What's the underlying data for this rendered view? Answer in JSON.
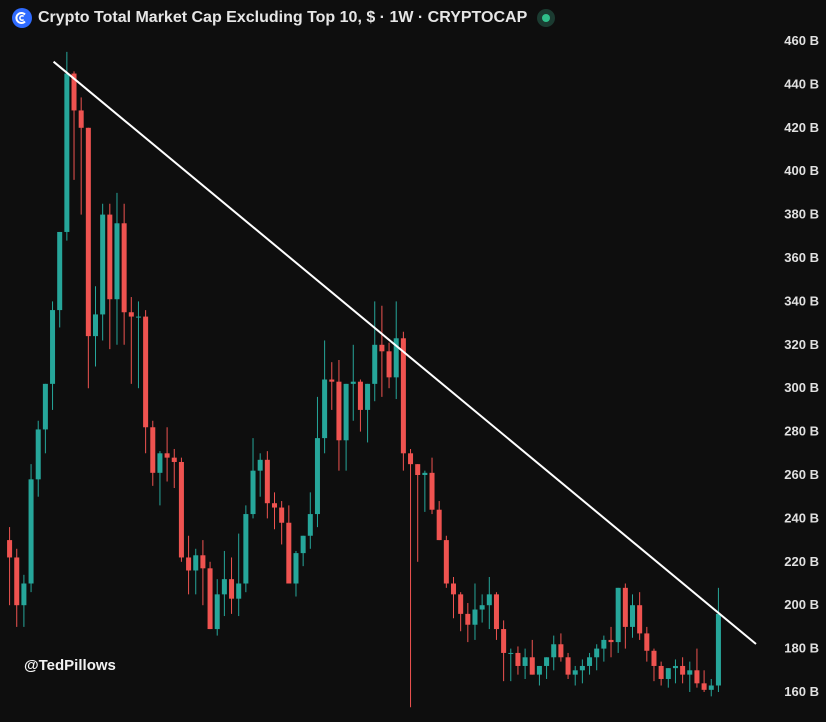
{
  "header": {
    "title": "Crypto Total Market Cap Excluding Top 10, $ · 1W · CRYPTOCAP",
    "logo_icon": "cryptocap-logo-icon",
    "status_icon": "market-status-dot-icon",
    "status_color": "#2fbf8a"
  },
  "watermark": "@TedPillows",
  "chart_data": {
    "type": "candlestick",
    "title": "Crypto Total Market Cap Excluding Top 10, $ · 1W · CRYPTOCAP",
    "xlabel": "",
    "ylabel": "",
    "unit": "B",
    "ylim": [
      155,
      465
    ],
    "y_ticks": [
      "460 B",
      "440 B",
      "420 B",
      "400 B",
      "380 B",
      "360 B",
      "340 B",
      "320 B",
      "300 B",
      "280 B",
      "260 B",
      "240 B",
      "220 B",
      "200 B",
      "180 B",
      "160 B"
    ],
    "y_tick_values": [
      460,
      440,
      420,
      400,
      380,
      360,
      340,
      320,
      300,
      280,
      260,
      240,
      220,
      200,
      180,
      160
    ],
    "grid": false,
    "colors": {
      "up": "#26a69a",
      "down": "#ef5350",
      "trendline": "#ffffff",
      "background": "#0e0e0e"
    },
    "trendline": {
      "from": {
        "index": 0,
        "value": 450
      },
      "to": {
        "index": 128,
        "value": 196
      }
    },
    "candles_ohlc": [
      [
        230,
        236,
        200,
        222
      ],
      [
        222,
        226,
        190,
        200
      ],
      [
        200,
        214,
        190,
        210
      ],
      [
        210,
        265,
        206,
        258
      ],
      [
        258,
        285,
        250,
        281
      ],
      [
        281,
        300,
        270,
        302
      ],
      [
        302,
        340,
        290,
        336
      ],
      [
        336,
        360,
        328,
        372
      ],
      [
        372,
        455,
        368,
        445
      ],
      [
        445,
        446,
        396,
        428
      ],
      [
        428,
        434,
        380,
        420
      ],
      [
        420,
        420,
        300,
        324
      ],
      [
        324,
        347,
        310,
        334
      ],
      [
        334,
        385,
        322,
        380
      ],
      [
        380,
        385,
        318,
        341
      ],
      [
        341,
        390,
        320,
        376
      ],
      [
        376,
        385,
        320,
        335
      ],
      [
        335,
        342,
        302,
        333
      ],
      [
        333,
        340,
        300,
        333
      ],
      [
        333,
        336,
        270,
        282
      ],
      [
        282,
        285,
        255,
        261
      ],
      [
        261,
        271,
        246,
        270
      ],
      [
        270,
        282,
        257,
        268
      ],
      [
        268,
        272,
        254,
        266
      ],
      [
        266,
        268,
        220,
        222
      ],
      [
        222,
        232,
        205,
        216
      ],
      [
        216,
        226,
        205,
        223
      ],
      [
        223,
        230,
        200,
        217
      ],
      [
        217,
        220,
        195,
        189
      ],
      [
        189,
        212,
        186,
        205
      ],
      [
        205,
        225,
        195,
        212
      ],
      [
        212,
        222,
        196,
        203
      ],
      [
        203,
        233,
        195,
        210
      ],
      [
        210,
        246,
        206,
        242
      ],
      [
        242,
        277,
        240,
        262
      ],
      [
        262,
        270,
        250,
        267
      ],
      [
        267,
        271,
        240,
        247
      ],
      [
        247,
        252,
        235,
        245
      ],
      [
        245,
        248,
        228,
        238
      ],
      [
        238,
        246,
        212,
        210
      ],
      [
        210,
        225,
        204,
        224
      ],
      [
        224,
        228,
        218,
        232
      ],
      [
        232,
        252,
        226,
        242
      ],
      [
        242,
        296,
        236,
        277
      ],
      [
        277,
        322,
        270,
        304
      ],
      [
        304,
        312,
        290,
        303
      ],
      [
        303,
        313,
        262,
        276
      ],
      [
        276,
        292,
        262,
        302
      ],
      [
        302,
        320,
        285,
        303
      ],
      [
        303,
        304,
        280,
        290
      ],
      [
        290,
        300,
        275,
        302
      ],
      [
        302,
        340,
        294,
        320
      ],
      [
        320,
        338,
        296,
        317
      ],
      [
        317,
        321,
        300,
        305
      ],
      [
        305,
        340,
        295,
        323
      ],
      [
        323,
        326,
        262,
        270
      ],
      [
        270,
        272,
        153,
        265
      ],
      [
        265,
        260,
        220,
        260
      ],
      [
        260,
        262,
        243,
        261
      ],
      [
        261,
        268,
        242,
        244
      ],
      [
        244,
        248,
        230,
        230
      ],
      [
        230,
        232,
        208,
        210
      ],
      [
        210,
        213,
        194,
        205
      ],
      [
        205,
        206,
        188,
        196
      ],
      [
        196,
        201,
        183,
        191
      ],
      [
        191,
        210,
        184,
        198
      ],
      [
        198,
        205,
        192,
        200
      ],
      [
        200,
        213,
        189,
        205
      ],
      [
        205,
        206,
        184,
        189
      ],
      [
        189,
        193,
        165,
        178
      ],
      [
        178,
        180,
        165,
        178
      ],
      [
        178,
        181,
        168,
        172
      ],
      [
        172,
        180,
        166,
        176
      ],
      [
        176,
        184,
        168,
        168
      ],
      [
        168,
        170,
        163,
        172
      ],
      [
        172,
        176,
        166,
        176
      ],
      [
        176,
        186,
        170,
        182
      ],
      [
        182,
        187,
        174,
        176
      ],
      [
        176,
        178,
        166,
        168
      ],
      [
        168,
        172,
        163,
        170
      ],
      [
        170,
        175,
        164,
        172
      ],
      [
        172,
        178,
        168,
        176
      ],
      [
        176,
        182,
        170,
        180
      ],
      [
        180,
        186,
        174,
        184
      ],
      [
        184,
        190,
        176,
        183
      ],
      [
        183,
        198,
        178,
        208
      ],
      [
        208,
        210,
        180,
        190
      ],
      [
        190,
        205,
        185,
        200
      ],
      [
        200,
        206,
        184,
        187
      ],
      [
        187,
        190,
        174,
        179
      ],
      [
        179,
        180,
        165,
        172
      ],
      [
        172,
        174,
        163,
        166
      ],
      [
        166,
        170,
        162,
        171
      ],
      [
        171,
        175,
        164,
        172
      ],
      [
        172,
        176,
        164,
        168
      ],
      [
        168,
        174,
        160,
        170
      ],
      [
        170,
        180,
        162,
        164
      ],
      [
        164,
        170,
        160,
        161
      ],
      [
        161,
        166,
        158,
        163
      ],
      [
        163,
        208,
        160,
        196
      ]
    ]
  }
}
